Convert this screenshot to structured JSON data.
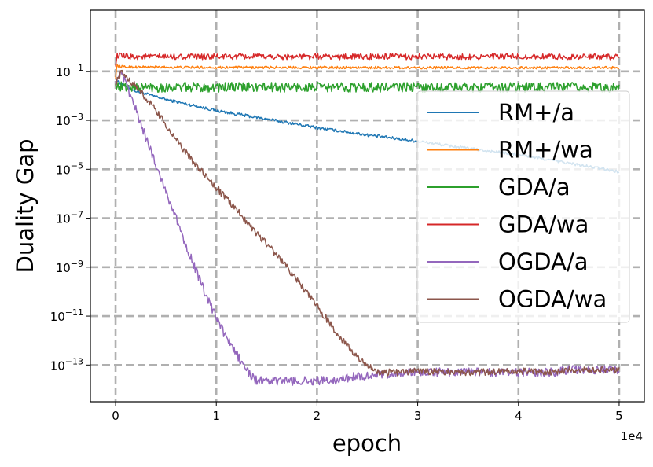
{
  "chart_data": {
    "type": "line",
    "title": "",
    "xlabel": "epoch",
    "ylabel": "Duality Gap",
    "x_offset_label": "1e4",
    "xlim": [
      -2500,
      52500
    ],
    "ylim_log10": [
      -14.5,
      1.5
    ],
    "yscale": "log",
    "grid": true,
    "legend_position": "center-right",
    "x_ticks": [
      {
        "value": 0,
        "label": "0"
      },
      {
        "value": 10000,
        "label": "1"
      },
      {
        "value": 20000,
        "label": "2"
      },
      {
        "value": 30000,
        "label": "3"
      },
      {
        "value": 40000,
        "label": "4"
      },
      {
        "value": 50000,
        "label": "5"
      }
    ],
    "y_ticks": [
      {
        "exp": -1,
        "base": "10",
        "sup": "−1"
      },
      {
        "exp": -3,
        "base": "10",
        "sup": "−3"
      },
      {
        "exp": -5,
        "base": "10",
        "sup": "−5"
      },
      {
        "exp": -7,
        "base": "10",
        "sup": "−7"
      },
      {
        "exp": -9,
        "base": "10",
        "sup": "−9"
      },
      {
        "exp": -11,
        "base": "10",
        "sup": "−11"
      },
      {
        "exp": -13,
        "base": "10",
        "sup": "−13"
      }
    ],
    "series": [
      {
        "name": "RM+/a",
        "color": "#1f77b4",
        "noise": 0.06,
        "x": [
          0,
          500,
          1000,
          2000,
          5000,
          10000,
          15000,
          20000,
          25000,
          30000,
          35000,
          40000,
          45000,
          50000
        ],
        "y_log10": [
          -1.3,
          -1.5,
          -1.6,
          -1.8,
          -2.15,
          -2.6,
          -2.95,
          -3.3,
          -3.6,
          -3.85,
          -4.15,
          -4.4,
          -4.75,
          -5.1
        ]
      },
      {
        "name": "RM+/wa",
        "color": "#ff7f0e",
        "noise": 0.05,
        "x": [
          0,
          100,
          300,
          1000,
          10000,
          20000,
          30000,
          40000,
          50000
        ],
        "y_log10": [
          -1.3,
          -0.75,
          -0.8,
          -0.82,
          -0.84,
          -0.84,
          -0.85,
          -0.85,
          -0.85
        ]
      },
      {
        "name": "GDA/a",
        "color": "#2ca02c",
        "noise": 0.2,
        "x": [
          0,
          200,
          1000,
          10000,
          20000,
          30000,
          40000,
          50000
        ],
        "y_log10": [
          -1.5,
          -1.6,
          -1.65,
          -1.65,
          -1.65,
          -1.65,
          -1.65,
          -1.65
        ]
      },
      {
        "name": "GDA/wa",
        "color": "#d62728",
        "noise": 0.12,
        "x": [
          0,
          100,
          1000,
          10000,
          20000,
          30000,
          40000,
          50000
        ],
        "y_log10": [
          -0.8,
          -0.35,
          -0.4,
          -0.4,
          -0.4,
          -0.4,
          -0.4,
          -0.4
        ]
      },
      {
        "name": "OGDA/a",
        "color": "#9467bd",
        "noise": 0.18,
        "x": [
          0,
          400,
          800,
          1500,
          3000,
          5000,
          7000,
          9000,
          11000,
          13000,
          13800,
          14500,
          16000,
          20000,
          22000,
          24000,
          26000,
          28000,
          30000,
          35000,
          40000,
          43900,
          44000,
          50000
        ],
        "y_log10": [
          -1.4,
          -1.1,
          -1.3,
          -2.0,
          -3.7,
          -5.9,
          -8.1,
          -10.2,
          -11.9,
          -13.2,
          -13.6,
          -13.65,
          -13.65,
          -13.65,
          -13.6,
          -13.45,
          -13.4,
          -13.35,
          -13.3,
          -13.3,
          -13.3,
          -13.3,
          -13.2,
          -13.2
        ]
      },
      {
        "name": "OGDA/wa",
        "color": "#8c564b",
        "noise": 0.14,
        "x": [
          0,
          500,
          1000,
          2000,
          4000,
          6000,
          8000,
          10000,
          12000,
          14000,
          16000,
          18000,
          20000,
          22000,
          24000,
          26000,
          28000,
          30000,
          35000,
          40000,
          43900,
          44000,
          50000
        ],
        "y_log10": [
          -1.5,
          -1.05,
          -1.2,
          -1.6,
          -2.6,
          -3.8,
          -4.85,
          -5.75,
          -6.65,
          -7.6,
          -8.5,
          -9.5,
          -10.6,
          -11.7,
          -12.7,
          -13.3,
          -13.3,
          -13.25,
          -13.3,
          -13.25,
          -13.3,
          -13.2,
          -13.2
        ]
      }
    ]
  }
}
